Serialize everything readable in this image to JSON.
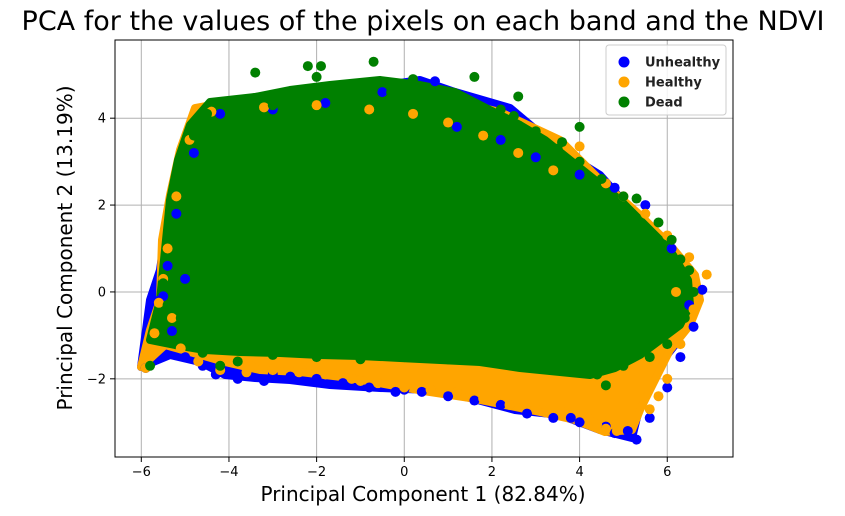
{
  "chart_data": {
    "type": "scatter",
    "title": "PCA for the values of the pixels on each band and the NDVI",
    "xlabel": "Principal Component 1 (82.84%)",
    "ylabel": "Principal Component 2 (13.19%)",
    "xlim": [
      -6.6,
      7.5
    ],
    "ylim": [
      -3.8,
      5.8
    ],
    "xticks": [
      -6,
      -4,
      -2,
      0,
      2,
      4,
      6
    ],
    "yticks": [
      -2,
      0,
      2,
      4
    ],
    "grid": true,
    "legend_position": "top-right",
    "series": [
      {
        "name": "Unhealthy",
        "color": "#0000ff",
        "points": [
          [
            -5.9,
            -1.75
          ],
          [
            -5.5,
            -0.1
          ],
          [
            -5.3,
            -0.9
          ],
          [
            -5.0,
            -1.5
          ],
          [
            -4.6,
            -1.7
          ],
          [
            -4.3,
            -1.9
          ],
          [
            -3.8,
            -2.0
          ],
          [
            -3.2,
            -2.05
          ],
          [
            -2.6,
            -1.95
          ],
          [
            -2.0,
            -2.0
          ],
          [
            -1.4,
            -2.1
          ],
          [
            -0.8,
            -2.2
          ],
          [
            -0.2,
            -2.3
          ],
          [
            0.4,
            -2.3
          ],
          [
            1.0,
            -2.4
          ],
          [
            1.6,
            -2.5
          ],
          [
            2.2,
            -2.6
          ],
          [
            2.8,
            -2.8
          ],
          [
            3.4,
            -2.9
          ],
          [
            4.0,
            -3.0
          ],
          [
            4.6,
            -3.1
          ],
          [
            5.1,
            -3.2
          ],
          [
            5.3,
            -3.4
          ],
          [
            5.6,
            -2.9
          ],
          [
            6.0,
            -2.2
          ],
          [
            6.3,
            -1.5
          ],
          [
            6.6,
            -0.8
          ],
          [
            6.8,
            0.05
          ],
          [
            6.5,
            -0.3
          ],
          [
            6.1,
            1.0
          ],
          [
            5.5,
            2.0
          ],
          [
            4.8,
            2.4
          ],
          [
            4.0,
            2.7
          ],
          [
            3.0,
            3.1
          ],
          [
            2.2,
            3.5
          ],
          [
            1.2,
            3.8
          ],
          [
            0.7,
            4.85
          ],
          [
            -0.5,
            4.6
          ],
          [
            -1.8,
            4.35
          ],
          [
            -3.0,
            4.2
          ],
          [
            -4.2,
            4.1
          ],
          [
            -4.8,
            3.2
          ],
          [
            -5.2,
            1.8
          ],
          [
            -5.4,
            0.6
          ],
          [
            -5.6,
            -0.2
          ],
          [
            -5.0,
            0.3
          ],
          [
            -3.0,
            -1.9
          ],
          [
            0.0,
            -2.25
          ],
          [
            3.8,
            -2.9
          ],
          [
            4.8,
            -3.25
          ]
        ]
      },
      {
        "name": "Healthy",
        "color": "#ffa500",
        "points": [
          [
            -5.9,
            -1.75
          ],
          [
            -5.7,
            -0.95
          ],
          [
            -5.6,
            -0.25
          ],
          [
            -5.3,
            -0.6
          ],
          [
            -5.1,
            -1.3
          ],
          [
            -4.7,
            -1.6
          ],
          [
            -4.2,
            -1.8
          ],
          [
            -3.6,
            -1.85
          ],
          [
            -3.0,
            -1.8
          ],
          [
            -2.4,
            -1.85
          ],
          [
            -1.8,
            -1.9
          ],
          [
            -1.2,
            -2.0
          ],
          [
            -0.6,
            -2.1
          ],
          [
            0.0,
            -2.2
          ],
          [
            0.6,
            -2.25
          ],
          [
            1.2,
            -2.3
          ],
          [
            1.8,
            -2.45
          ],
          [
            2.4,
            -2.6
          ],
          [
            3.0,
            -2.7
          ],
          [
            3.6,
            -2.75
          ],
          [
            4.2,
            -2.9
          ],
          [
            4.6,
            -3.15
          ],
          [
            4.85,
            -3.2
          ],
          [
            5.2,
            -3.0
          ],
          [
            5.6,
            -2.7
          ],
          [
            6.0,
            -2.0
          ],
          [
            6.3,
            -1.2
          ],
          [
            6.6,
            -0.4
          ],
          [
            6.9,
            0.4
          ],
          [
            6.5,
            0.8
          ],
          [
            6.0,
            1.3
          ],
          [
            5.5,
            1.8
          ],
          [
            5.0,
            2.2
          ],
          [
            4.6,
            2.5
          ],
          [
            4.0,
            3.35
          ],
          [
            3.4,
            2.8
          ],
          [
            2.6,
            3.2
          ],
          [
            1.8,
            3.6
          ],
          [
            1.0,
            3.9
          ],
          [
            0.2,
            4.1
          ],
          [
            -0.8,
            4.2
          ],
          [
            -2.0,
            4.3
          ],
          [
            -3.2,
            4.25
          ],
          [
            -4.4,
            4.15
          ],
          [
            -4.9,
            3.5
          ],
          [
            -5.2,
            2.2
          ],
          [
            -5.4,
            1.0
          ],
          [
            -5.5,
            0.3
          ],
          [
            -3.5,
            -1.7
          ],
          [
            -1.0,
            -2.05
          ],
          [
            2.0,
            -2.5
          ],
          [
            4.4,
            -3.05
          ],
          [
            5.8,
            -2.4
          ],
          [
            6.2,
            0.0
          ]
        ]
      },
      {
        "name": "Dead",
        "color": "#008000",
        "points": [
          [
            -5.8,
            -1.7
          ],
          [
            -5.5,
            0.2
          ],
          [
            -5.2,
            1.5
          ],
          [
            -5.0,
            2.8
          ],
          [
            -4.8,
            3.6
          ],
          [
            -4.5,
            4.1
          ],
          [
            -4.0,
            4.2
          ],
          [
            -3.4,
            5.05
          ],
          [
            -3.0,
            4.3
          ],
          [
            -2.5,
            4.6
          ],
          [
            -2.0,
            4.95
          ],
          [
            -1.5,
            4.5
          ],
          [
            -1.0,
            4.7
          ],
          [
            -0.7,
            5.3
          ],
          [
            -0.3,
            4.6
          ],
          [
            0.2,
            4.9
          ],
          [
            0.7,
            4.5
          ],
          [
            1.2,
            4.2
          ],
          [
            1.6,
            4.95
          ],
          [
            2.2,
            4.2
          ],
          [
            2.5,
            4.05
          ],
          [
            3.0,
            3.7
          ],
          [
            3.5,
            3.3
          ],
          [
            4.0,
            3.0
          ],
          [
            4.5,
            2.6
          ],
          [
            5.0,
            2.2
          ],
          [
            5.3,
            2.15
          ],
          [
            5.8,
            1.6
          ],
          [
            6.1,
            1.2
          ],
          [
            6.3,
            0.75
          ],
          [
            6.5,
            0.5
          ],
          [
            6.6,
            0.0
          ],
          [
            6.4,
            -0.6
          ],
          [
            6.0,
            -1.2
          ],
          [
            5.6,
            -1.5
          ],
          [
            5.0,
            -1.7
          ],
          [
            4.4,
            -1.9
          ],
          [
            4.6,
            -2.15
          ],
          [
            3.8,
            -1.8
          ],
          [
            3.0,
            -1.7
          ],
          [
            2.0,
            -1.6
          ],
          [
            1.0,
            -1.55
          ],
          [
            0.0,
            -1.5
          ],
          [
            -1.0,
            -1.55
          ],
          [
            -2.0,
            -1.5
          ],
          [
            -3.0,
            -1.45
          ],
          [
            -3.8,
            -1.6
          ],
          [
            -4.2,
            -1.7
          ],
          [
            -4.6,
            -1.4
          ],
          [
            -5.1,
            -0.6
          ],
          [
            -5.4,
            -0.3
          ],
          [
            2.6,
            4.5
          ],
          [
            3.6,
            3.45
          ],
          [
            4.0,
            3.8
          ],
          [
            -2.2,
            5.2
          ],
          [
            -1.9,
            5.2
          ]
        ]
      }
    ]
  }
}
